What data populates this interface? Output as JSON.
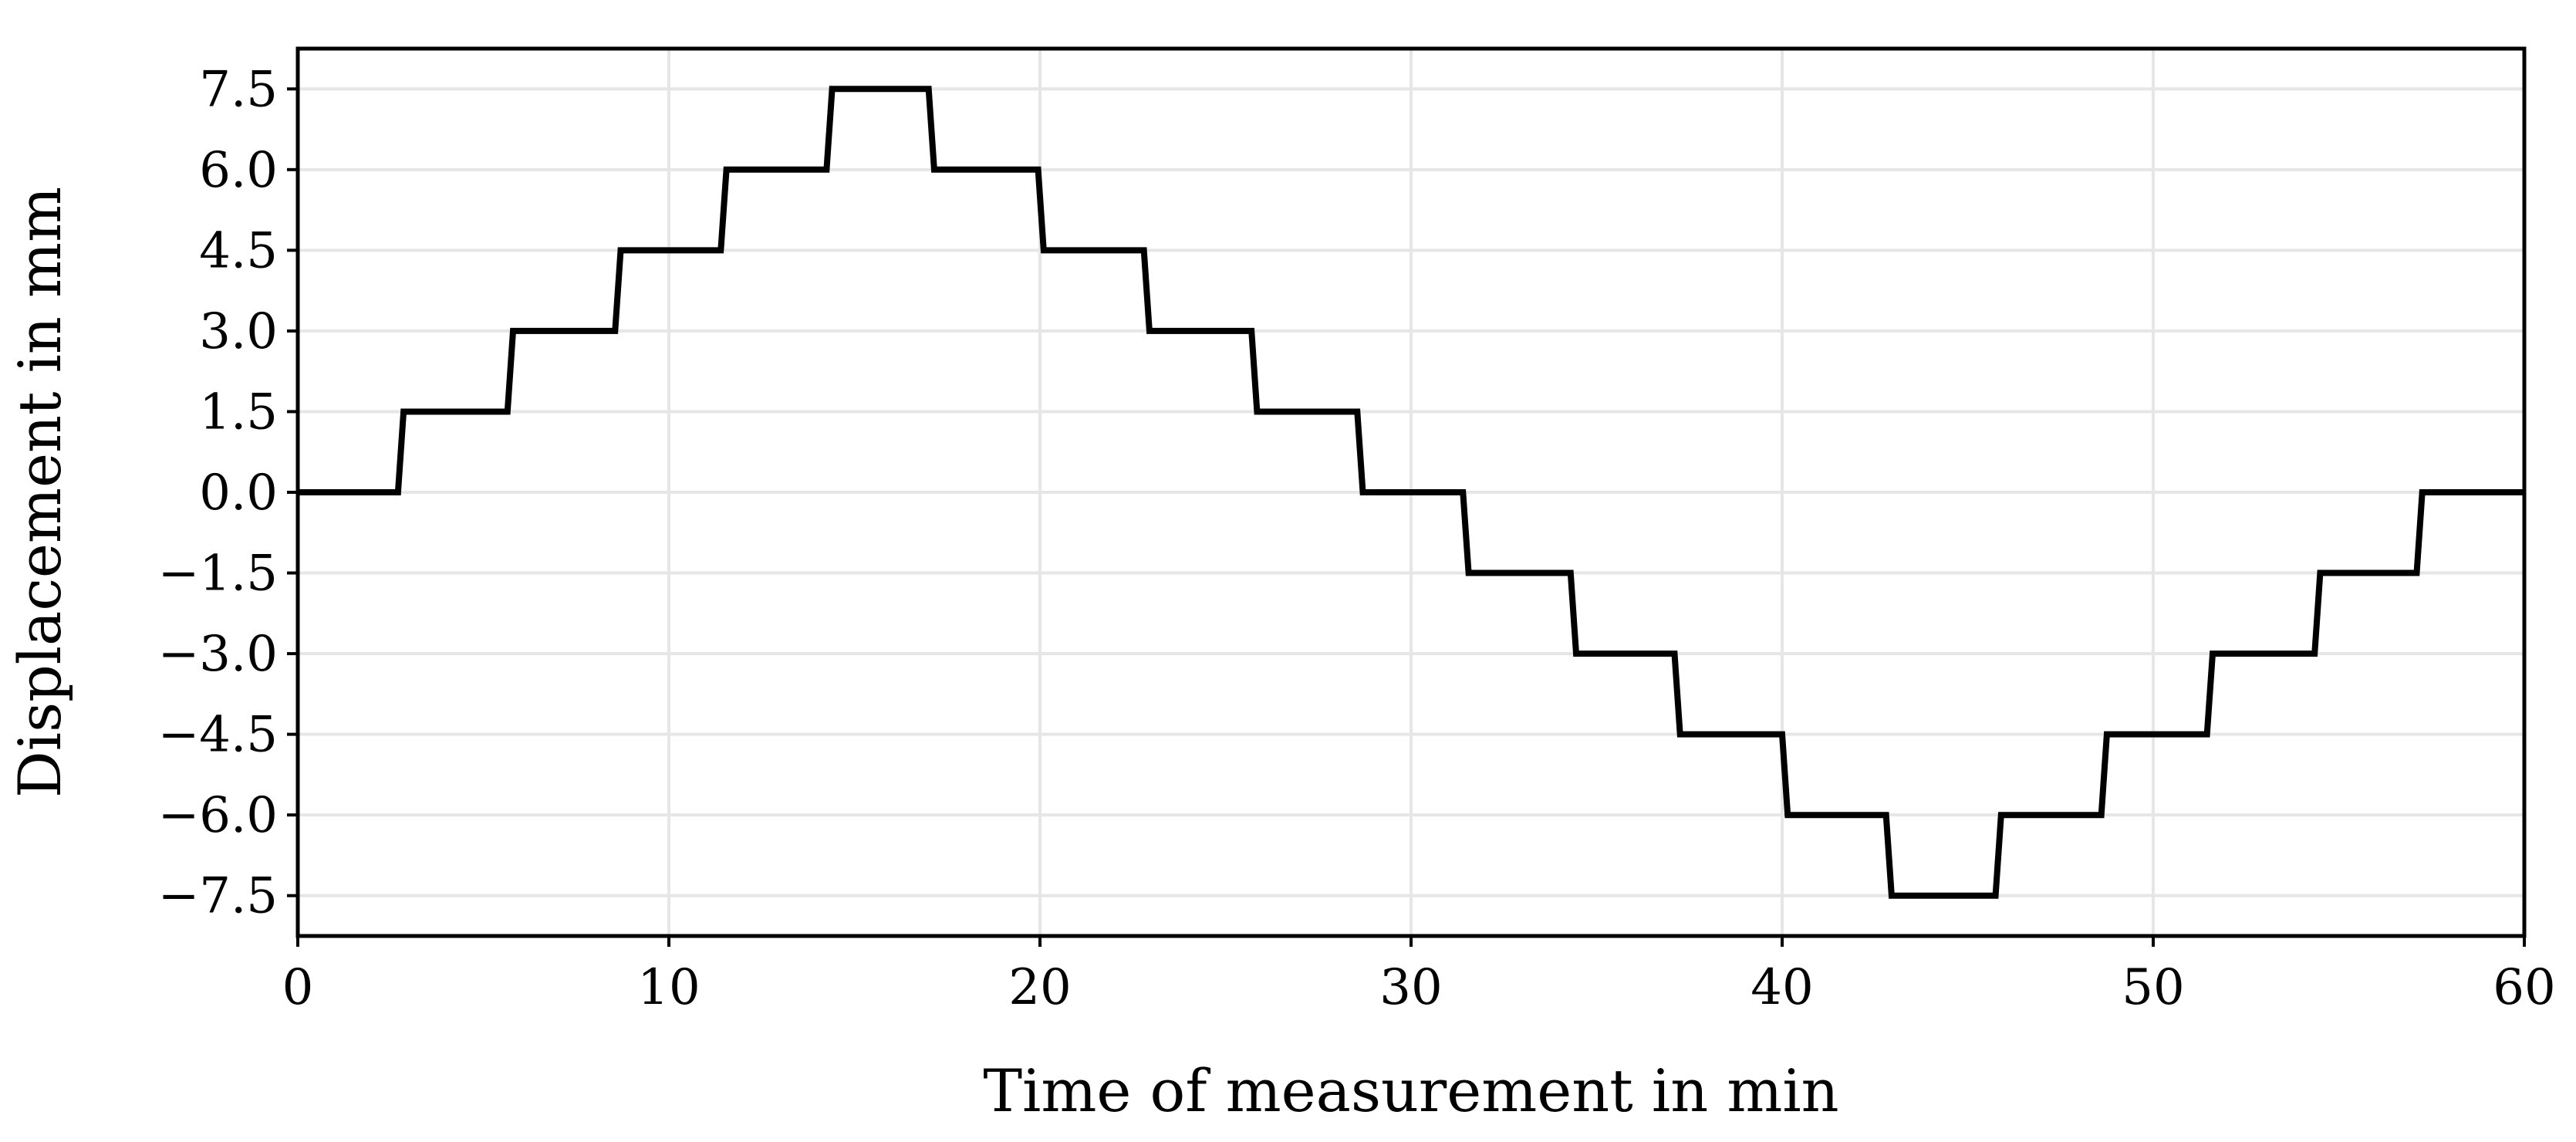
{
  "chart_data": {
    "type": "line",
    "step": true,
    "title": "",
    "xlabel": "Time of measurement in min",
    "ylabel": "Displacement in mm",
    "xlim": [
      0,
      60
    ],
    "ylim": [
      -8.25,
      8.25
    ],
    "xticks": [
      0,
      10,
      20,
      30,
      40,
      50,
      60
    ],
    "xtick_labels": [
      "0",
      "10",
      "20",
      "30",
      "40",
      "50",
      "60"
    ],
    "yticks": [
      7.5,
      6.0,
      4.5,
      3.0,
      1.5,
      0.0,
      -1.5,
      -3.0,
      -4.5,
      -6.0,
      -7.5
    ],
    "ytick_labels": [
      "7.5",
      "6.0",
      "4.5",
      "3.0",
      "1.5",
      "0.0",
      "−1.5",
      "−3.0",
      "−4.5",
      "−6.0",
      "−7.5"
    ],
    "grid": true,
    "line_color": "#000000",
    "grid_color": "#e6e6e6",
    "series": [
      {
        "x": [
          0,
          2.7,
          2.85,
          5.65,
          5.8,
          8.55,
          8.7,
          11.4,
          11.55,
          14.25,
          14.4,
          17.0,
          17.15,
          19.95,
          20.1,
          22.8,
          22.95,
          25.7,
          25.85,
          28.55,
          28.7,
          31.4,
          31.55,
          34.3,
          34.45,
          37.1,
          37.25,
          40.0,
          40.15,
          42.8,
          42.95,
          45.75,
          45.9,
          48.6,
          48.75,
          51.45,
          51.6,
          54.35,
          54.5,
          57.1,
          57.25,
          60.0
        ],
        "y": [
          0,
          0,
          1.5,
          1.5,
          3.0,
          3.0,
          4.5,
          4.5,
          6.0,
          6.0,
          7.5,
          7.5,
          6.0,
          6.0,
          4.5,
          4.5,
          3.0,
          3.0,
          1.5,
          1.5,
          0,
          0,
          -1.5,
          -1.5,
          -3.0,
          -3.0,
          -4.5,
          -4.5,
          -6.0,
          -6.0,
          -7.5,
          -7.5,
          -6.0,
          -6.0,
          -4.5,
          -4.5,
          -3.0,
          -3.0,
          -1.5,
          -1.5,
          0,
          0
        ]
      }
    ]
  }
}
